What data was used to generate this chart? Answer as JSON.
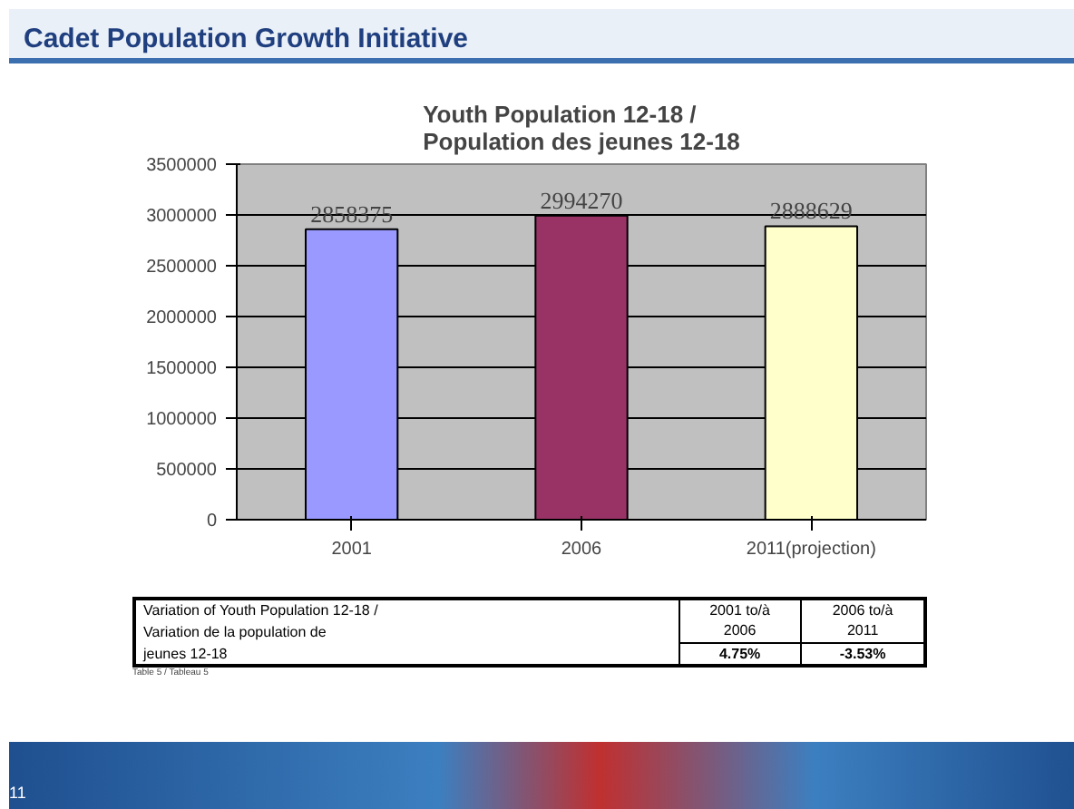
{
  "chart_data": {
    "type": "bar",
    "title": "Cadet Population Growth Initiative",
    "subtitle": "Youth Population 12-18 /\nPopulation des jeunes 12-18",
    "categories": [
      "2001",
      "2006",
      "2011(projection)"
    ],
    "values": [
      2858375,
      2994270,
      2888629
    ],
    "colors": [
      "#9999ff",
      "#993366",
      "#ffffcc"
    ],
    "ylim": [
      0,
      3500000
    ],
    "yticks": [
      0,
      500000,
      1000000,
      1500000,
      2000000,
      2500000,
      3000000,
      3500000
    ],
    "grid": "y",
    "data_labels": true,
    "annotations": [
      "Variation of Youth Population 12-18 /",
      "Variation de la population de",
      "jeunes 12-18",
      "2001 to/à",
      "2006",
      "2006 to/à",
      "2011",
      "4.75%",
      "-3.53%",
      "Table 5 / Tableau 5",
      "11"
    ]
  }
}
